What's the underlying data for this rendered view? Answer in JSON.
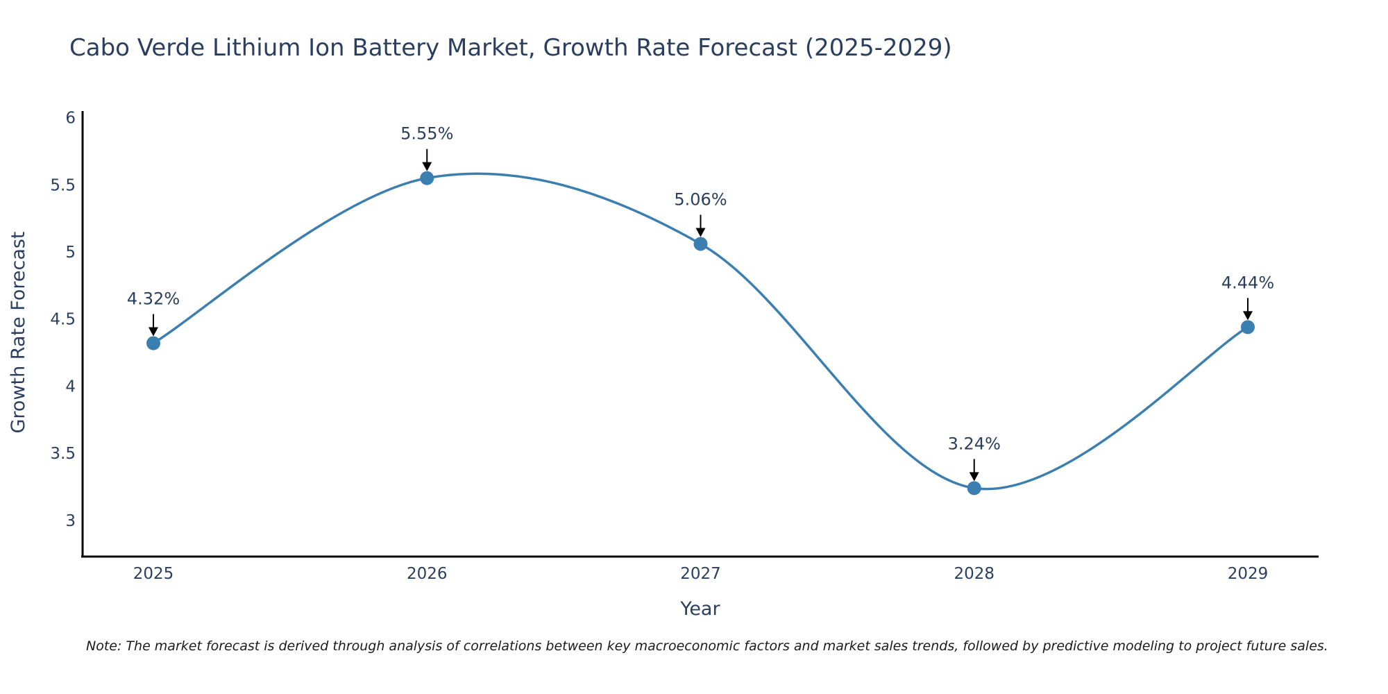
{
  "chart_data": {
    "type": "line",
    "title": "Cabo Verde Lithium Ion Battery Market, Growth Rate Forecast (2025-2029)",
    "xlabel": "Year",
    "ylabel": "Growth Rate Forecast",
    "categories": [
      "2025",
      "2026",
      "2027",
      "2028",
      "2029"
    ],
    "series": [
      {
        "name": "Growth Rate Forecast",
        "values": [
          4.32,
          5.55,
          5.06,
          3.24,
          4.44
        ],
        "labels": [
          "4.32%",
          "5.55%",
          "5.06%",
          "3.24%",
          "4.44%"
        ],
        "color": "#3b7eb0"
      }
    ],
    "ylim": [
      2.73,
      6.05
    ],
    "yticks": [
      3,
      3.5,
      4,
      4.5,
      5,
      5.5,
      6
    ],
    "ytick_labels": [
      "3",
      "3.5",
      "4",
      "4.5",
      "5",
      "5.5",
      "6"
    ],
    "grid": false,
    "line_shape": "spline",
    "annotation_arrows": true,
    "axis_color": "#000000",
    "text_color": "#2a3f5f"
  },
  "note": "Note: The market forecast is derived through analysis of correlations between key macroeconomic factors and market sales trends, followed by predictive modeling to project future sales."
}
